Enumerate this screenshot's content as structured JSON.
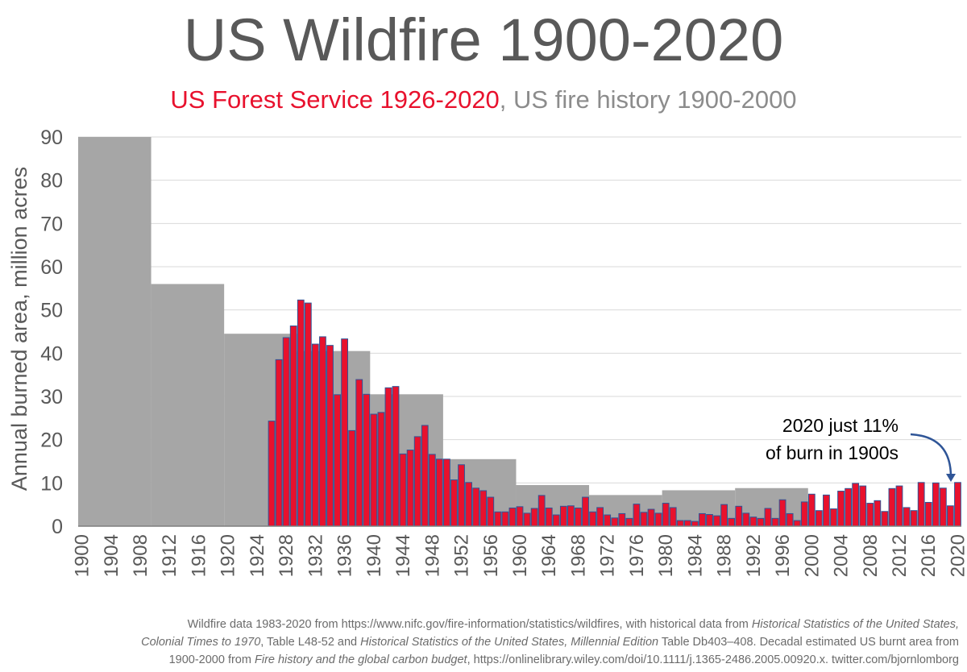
{
  "title": "US Wildfire 1900-2020",
  "subtitle": {
    "part1": "US Forest Service 1926-2020",
    "sep": ", ",
    "part2": "US fire history 1900-2000",
    "color1": "#e8112d",
    "color2": "#8c8c8c"
  },
  "annotation": {
    "line1": "2020 just 11%",
    "line2": "of burn in 1900s",
    "arrow_color": "#2f5597"
  },
  "footnote": {
    "l1a": "Wildfire data 1983-2020 from https://www.nifc.gov/fire-information/statistics/wildfires, with historical data from ",
    "l1b": "Historical Statistics of the United States,",
    "l2a": "Colonial Times to 1970",
    "l2b": ", Table L48-52 and ",
    "l2c": "Historical Statistics of the United States, Millennial Edition",
    "l2d": " Table Db403–408. Decadal estimated US burnt area from",
    "l3a": "1900-2000 from ",
    "l3b": "Fire history and the global carbon budget",
    "l3c": ", https://onlinelibrary.wiley.com/doi/10.1111/j.1365-2486.2005.00920.x. twitter.com/bjornlomborg"
  },
  "chart_data": {
    "type": "bar",
    "ylabel": "Annual burned area, million acres",
    "xlabel": "",
    "ylim": [
      0,
      90
    ],
    "yticks": [
      0,
      10,
      20,
      30,
      40,
      50,
      60,
      70,
      80,
      90
    ],
    "xlim": [
      1900,
      2020
    ],
    "xticks": [
      1900,
      1904,
      1908,
      1912,
      1916,
      1920,
      1924,
      1928,
      1932,
      1936,
      1940,
      1944,
      1948,
      1952,
      1956,
      1960,
      1964,
      1968,
      1972,
      1976,
      1980,
      1984,
      1988,
      1992,
      1996,
      2000,
      2004,
      2008,
      2012,
      2016,
      2020
    ],
    "series": [
      {
        "name": "US fire history 1900-2000",
        "color": "#a6a6a6",
        "type": "decadal",
        "decades": [
          {
            "start": 1900,
            "end": 1909,
            "value": 90
          },
          {
            "start": 1910,
            "end": 1919,
            "value": 56
          },
          {
            "start": 1920,
            "end": 1929,
            "value": 44.5
          },
          {
            "start": 1930,
            "end": 1939,
            "value": 40.5
          },
          {
            "start": 1940,
            "end": 1949,
            "value": 30.5
          },
          {
            "start": 1950,
            "end": 1959,
            "value": 15.5
          },
          {
            "start": 1960,
            "end": 1969,
            "value": 9.5
          },
          {
            "start": 1970,
            "end": 1979,
            "value": 7.2
          },
          {
            "start": 1980,
            "end": 1989,
            "value": 8.3
          },
          {
            "start": 1990,
            "end": 1999,
            "value": 8.8
          }
        ]
      },
      {
        "name": "US Forest Service 1926-2020",
        "color": "#e8112d",
        "edge": "#2f5597",
        "start_year": 1926,
        "values": [
          24.3,
          38.5,
          43.6,
          46.3,
          52.3,
          51.6,
          42.1,
          43.8,
          41.8,
          30.4,
          43.3,
          22.1,
          33.9,
          30.5,
          25.9,
          26.3,
          32.0,
          32.3,
          16.7,
          17.6,
          20.7,
          23.3,
          16.6,
          15.5,
          15.5,
          10.7,
          14.2,
          10.1,
          8.8,
          8.2,
          6.7,
          3.3,
          3.3,
          4.2,
          4.5,
          3.0,
          4.1,
          7.1,
          4.2,
          2.6,
          4.6,
          4.7,
          4.2,
          6.7,
          3.3,
          4.3,
          2.6,
          1.9,
          2.9,
          1.8,
          5.1,
          3.2,
          3.9,
          3.0,
          5.3,
          4.3,
          1.3,
          1.3,
          1.1,
          2.9,
          2.7,
          2.4,
          5.0,
          1.8,
          4.6,
          3.0,
          2.1,
          1.8,
          4.1,
          1.8,
          6.1,
          2.9,
          1.3,
          5.6,
          7.4,
          3.6,
          7.2,
          4.0,
          8.1,
          8.7,
          9.9,
          9.3,
          5.3,
          5.9,
          3.4,
          8.7,
          9.3,
          4.3,
          3.6,
          10.1,
          5.5,
          10.0,
          8.8,
          4.7,
          10.1
        ]
      }
    ]
  }
}
